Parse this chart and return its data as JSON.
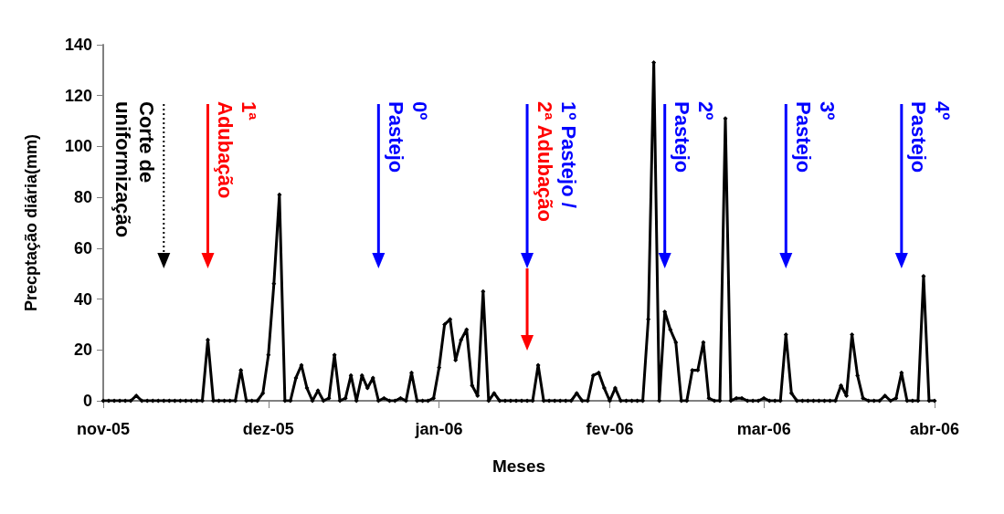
{
  "chart_data": {
    "type": "line",
    "xlabel": "Meses",
    "ylabel": "Precptação diária(mm)",
    "x": [
      "2005-11-01",
      "2005-11-02",
      "2005-11-03",
      "2005-11-04",
      "2005-11-05",
      "2005-11-06",
      "2005-11-07",
      "2005-11-08",
      "2005-11-09",
      "2005-11-10",
      "2005-11-11",
      "2005-11-12",
      "2005-11-13",
      "2005-11-14",
      "2005-11-15",
      "2005-11-16",
      "2005-11-17",
      "2005-11-18",
      "2005-11-19",
      "2005-11-20",
      "2005-11-21",
      "2005-11-22",
      "2005-11-23",
      "2005-11-24",
      "2005-11-25",
      "2005-11-26",
      "2005-11-27",
      "2005-11-28",
      "2005-11-29",
      "2005-11-30",
      "2005-12-01",
      "2005-12-02",
      "2005-12-03",
      "2005-12-04",
      "2005-12-05",
      "2005-12-06",
      "2005-12-07",
      "2005-12-08",
      "2005-12-09",
      "2005-12-10",
      "2005-12-11",
      "2005-12-12",
      "2005-12-13",
      "2005-12-14",
      "2005-12-15",
      "2005-12-16",
      "2005-12-17",
      "2005-12-18",
      "2005-12-19",
      "2005-12-20",
      "2005-12-21",
      "2005-12-22",
      "2005-12-23",
      "2005-12-24",
      "2005-12-25",
      "2005-12-26",
      "2005-12-27",
      "2005-12-28",
      "2005-12-29",
      "2005-12-30",
      "2005-12-31",
      "2006-01-01",
      "2006-01-02",
      "2006-01-03",
      "2006-01-04",
      "2006-01-05",
      "2006-01-06",
      "2006-01-07",
      "2006-01-08",
      "2006-01-09",
      "2006-01-10",
      "2006-01-11",
      "2006-01-12",
      "2006-01-13",
      "2006-01-14",
      "2006-01-15",
      "2006-01-16",
      "2006-01-17",
      "2006-01-18",
      "2006-01-19",
      "2006-01-20",
      "2006-01-21",
      "2006-01-22",
      "2006-01-23",
      "2006-01-24",
      "2006-01-25",
      "2006-01-26",
      "2006-01-27",
      "2006-01-28",
      "2006-01-29",
      "2006-01-30",
      "2006-01-31",
      "2006-02-01",
      "2006-02-02",
      "2006-02-03",
      "2006-02-04",
      "2006-02-05",
      "2006-02-06",
      "2006-02-07",
      "2006-02-08",
      "2006-02-09",
      "2006-02-10",
      "2006-02-11",
      "2006-02-12",
      "2006-02-13",
      "2006-02-14",
      "2006-02-15",
      "2006-02-16",
      "2006-02-17",
      "2006-02-18",
      "2006-02-19",
      "2006-02-20",
      "2006-02-21",
      "2006-02-22",
      "2006-02-23",
      "2006-02-24",
      "2006-02-25",
      "2006-02-26",
      "2006-02-27",
      "2006-02-28",
      "2006-03-01",
      "2006-03-02",
      "2006-03-03",
      "2006-03-04",
      "2006-03-05",
      "2006-03-06",
      "2006-03-07",
      "2006-03-08",
      "2006-03-09",
      "2006-03-10",
      "2006-03-11",
      "2006-03-12",
      "2006-03-13",
      "2006-03-14",
      "2006-03-15",
      "2006-03-16",
      "2006-03-17",
      "2006-03-18",
      "2006-03-19",
      "2006-03-20",
      "2006-03-21",
      "2006-03-22",
      "2006-03-23",
      "2006-03-24",
      "2006-03-25",
      "2006-03-26",
      "2006-03-27",
      "2006-03-28",
      "2006-03-29",
      "2006-03-30",
      "2006-03-31",
      "2006-04-01"
    ],
    "series": [
      {
        "color": "#000000",
        "values": [
          0,
          0,
          0,
          0,
          0,
          0,
          2,
          0,
          0,
          0,
          0,
          0,
          0,
          0,
          0,
          0,
          0,
          0,
          0,
          24,
          0,
          0,
          0,
          0,
          0,
          12,
          0,
          0,
          0,
          3,
          18,
          46,
          81,
          0,
          0,
          9,
          14,
          5,
          0,
          4,
          0,
          1,
          18,
          0,
          1,
          10,
          0,
          10,
          5,
          9,
          0,
          1,
          0,
          0,
          1,
          0,
          11,
          0,
          0,
          0,
          1,
          13,
          30,
          32,
          16,
          24,
          28,
          6,
          2,
          43,
          0,
          3,
          0,
          0,
          0,
          0,
          0,
          0,
          0,
          14,
          0,
          0,
          0,
          0,
          0,
          0,
          3,
          0,
          0,
          10,
          11,
          5,
          0,
          5,
          0,
          0,
          0,
          0,
          0,
          32,
          133,
          0,
          35,
          28,
          23,
          0,
          0,
          12,
          12,
          23,
          1,
          0,
          0,
          111,
          0,
          1,
          1,
          0,
          0,
          0,
          1,
          0,
          0,
          0,
          26,
          3,
          0,
          0,
          0,
          0,
          0,
          0,
          0,
          0,
          6,
          2,
          26,
          10,
          1,
          0,
          0,
          0,
          2,
          0,
          1,
          11,
          0,
          0,
          0,
          49,
          0,
          0
        ]
      }
    ],
    "xlim": [
      "2005-11-01",
      "2006-04-01"
    ],
    "xticks": [
      {
        "value": "2005-11-01",
        "label": "nov-05"
      },
      {
        "value": "2005-12-01",
        "label": "dez-05"
      },
      {
        "value": "2006-01-01",
        "label": "jan-06"
      },
      {
        "value": "2006-02-01",
        "label": "fev-06"
      },
      {
        "value": "2006-03-01",
        "label": "mar-06"
      },
      {
        "value": "2006-04-01",
        "label": "abr-06"
      }
    ],
    "ylim": [
      0,
      140
    ],
    "yticks": [
      0,
      20,
      40,
      60,
      80,
      100,
      120,
      140
    ],
    "grid": false,
    "marker": "diamond",
    "line_style": "solid",
    "ref_lines": [
      {
        "axis": "x",
        "value": "2005-11-12",
        "label": "Corte de\nuniformização",
        "color": "#000000",
        "line_style": "dotted"
      },
      {
        "axis": "x",
        "value": "2005-11-20",
        "label": "1ª\nAdubação",
        "color": "#ff0000",
        "line_style": "solid"
      },
      {
        "axis": "x",
        "value": "2005-12-21",
        "label": "0º\nPastejo",
        "color": "#0000ff",
        "line_style": "solid"
      },
      {
        "axis": "x",
        "value": "2006-01-17",
        "label": "1º Pastejo /",
        "color": "#0000ff",
        "line_style": "solid"
      },
      {
        "axis": "x",
        "value": "2006-01-17",
        "label": "2ª Adubação",
        "color": "#ff0000",
        "line_style": "solid"
      },
      {
        "axis": "x",
        "value": "2006-02-11",
        "label": "2º\nPastejo",
        "color": "#0000ff",
        "line_style": "solid"
      },
      {
        "axis": "x",
        "value": "2006-03-05",
        "label": "3º\nPastejo",
        "color": "#0000ff",
        "line_style": "solid"
      },
      {
        "axis": "x",
        "value": "2006-03-26",
        "label": "4º\nPastejo",
        "color": "#0000ff",
        "line_style": "solid"
      }
    ]
  }
}
